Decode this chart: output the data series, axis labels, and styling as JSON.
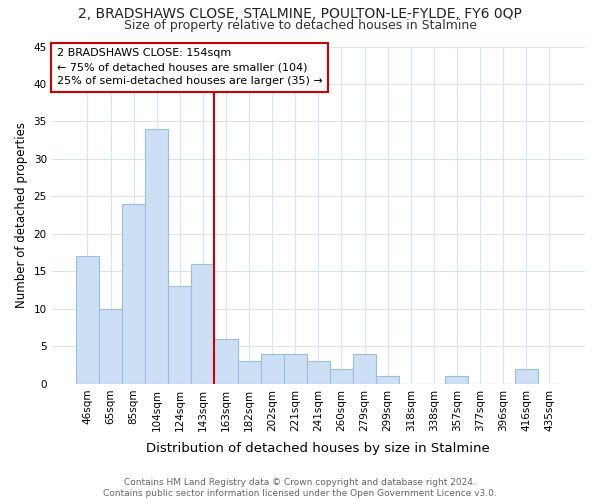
{
  "title": "2, BRADSHAWS CLOSE, STALMINE, POULTON-LE-FYLDE, FY6 0QP",
  "subtitle": "Size of property relative to detached houses in Stalmine",
  "xlabel": "Distribution of detached houses by size in Stalmine",
  "ylabel": "Number of detached properties",
  "categories": [
    "46sqm",
    "65sqm",
    "85sqm",
    "104sqm",
    "124sqm",
    "143sqm",
    "163sqm",
    "182sqm",
    "202sqm",
    "221sqm",
    "241sqm",
    "260sqm",
    "279sqm",
    "299sqm",
    "318sqm",
    "338sqm",
    "357sqm",
    "377sqm",
    "396sqm",
    "416sqm",
    "435sqm"
  ],
  "values": [
    17,
    10,
    24,
    34,
    13,
    16,
    6,
    3,
    4,
    4,
    3,
    2,
    4,
    1,
    0,
    0,
    1,
    0,
    0,
    2,
    0
  ],
  "bar_color": "#ccdff5",
  "bar_edge_color": "#9bbedd",
  "vline_index": 6,
  "vline_color": "#cc0000",
  "annotation_text": "2 BRADSHAWS CLOSE: 154sqm\n← 75% of detached houses are smaller (104)\n25% of semi-detached houses are larger (35) →",
  "annotation_box_edgecolor": "#cc0000",
  "annotation_box_facecolor": "#ffffff",
  "footer": "Contains HM Land Registry data © Crown copyright and database right 2024.\nContains public sector information licensed under the Open Government Licence v3.0.",
  "ylim": [
    0,
    45
  ],
  "yticks": [
    0,
    5,
    10,
    15,
    20,
    25,
    30,
    35,
    40,
    45
  ],
  "bg_color": "#ffffff",
  "grid_color": "#d8e4f0",
  "title_fontsize": 10,
  "subtitle_fontsize": 9,
  "ylabel_fontsize": 8.5,
  "xlabel_fontsize": 9.5,
  "tick_fontsize": 7.5,
  "annotation_fontsize": 8,
  "footer_fontsize": 6.5
}
